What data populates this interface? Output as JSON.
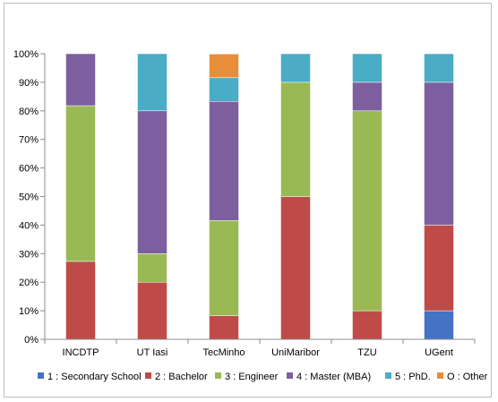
{
  "chart_data": {
    "type": "bar",
    "stacked": true,
    "categories": [
      "INCDTP",
      "UT Iasi",
      "TecMinho",
      "UniMaribor",
      "TZU",
      "UGent"
    ],
    "series": [
      {
        "name": "1 : Secondary School",
        "color": "#4472C4",
        "values": [
          0,
          0,
          0,
          0,
          0,
          10
        ]
      },
      {
        "name": "2 : Bachelor",
        "color": "#BE4B48",
        "values": [
          27.3,
          20,
          8.3,
          50,
          10,
          30
        ]
      },
      {
        "name": "3 : Engineer",
        "color": "#98B954",
        "values": [
          54.5,
          10,
          33.3,
          40,
          70,
          0
        ]
      },
      {
        "name": "4 : Master (MBA)",
        "color": "#7D5FA0",
        "values": [
          18.2,
          50,
          41.7,
          0,
          10,
          50
        ]
      },
      {
        "name": "5 : PhD.",
        "color": "#4BACC6",
        "values": [
          0,
          20,
          8.3,
          10,
          10,
          10
        ]
      },
      {
        "name": "O : Other",
        "color": "#E88E3B",
        "values": [
          0,
          0,
          8.3,
          0,
          0,
          0
        ]
      }
    ],
    "y_ticks": [
      "0%",
      "10%",
      "20%",
      "30%",
      "40%",
      "50%",
      "60%",
      "70%",
      "80%",
      "90%",
      "100%"
    ],
    "ylim": [
      0,
      100
    ],
    "grid": false,
    "legend": "bottom"
  }
}
